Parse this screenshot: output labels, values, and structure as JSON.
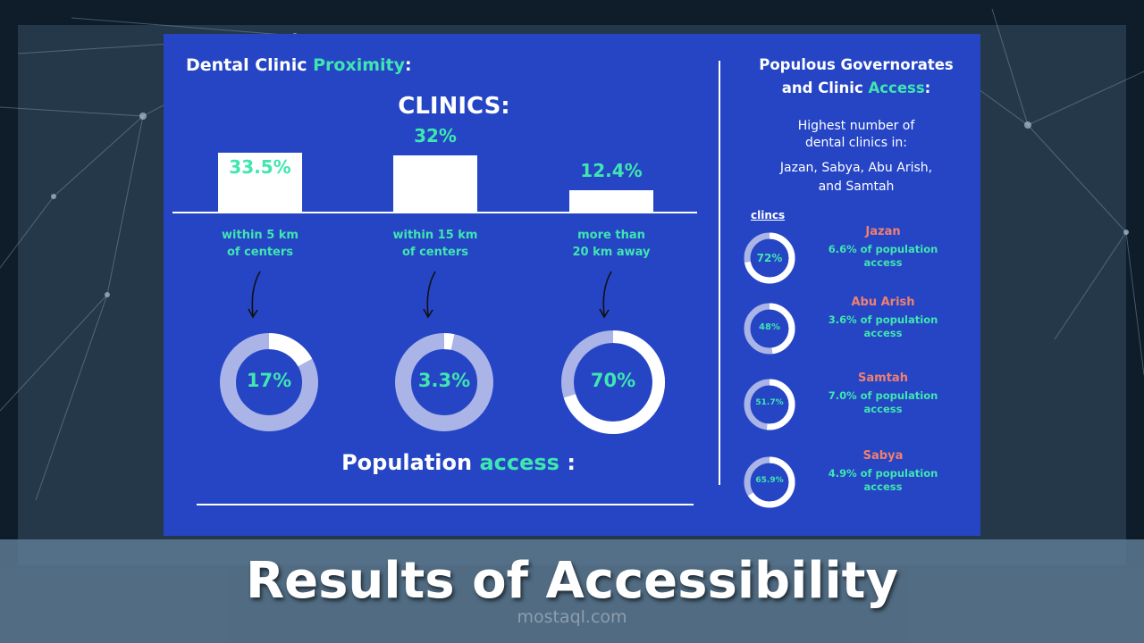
{
  "slide_title": "Results of Accessibility",
  "watermark": "mostaql.com",
  "left": {
    "title_part1": "Dental Clinic ",
    "title_part2": "Proximity",
    "title_part3": ":",
    "clinics_heading": "CLINICS:",
    "population_part1": "Population ",
    "population_part2": "access",
    "population_part3": " :"
  },
  "right": {
    "title_line1": "Populous Governorates",
    "title_line2_part1": "and Clinic ",
    "title_line2_part2": "Access",
    "title_line2_part3": ":",
    "subtitle_line1": "Highest number of",
    "subtitle_line2": "dental clinics in:",
    "list_line1": "Jazan, Sabya, Abu Arish,",
    "list_line2": "and Samtah",
    "clincs_label": "clincs"
  },
  "colors": {
    "panel": "#2545c5",
    "accent": "#3fe6b0",
    "gov_name": "#f08070",
    "donut_track": "#aab4e6",
    "donut_fill": "#ffffff"
  },
  "chart_data": [
    {
      "type": "bar",
      "title": "CLINICS:",
      "categories": [
        "within 5 km of centers",
        "within 15 km of centers",
        "more than 20 km away"
      ],
      "category_lines": [
        [
          "within 5 km",
          "of centers"
        ],
        [
          "within 15 km",
          "of centers"
        ],
        [
          "more than",
          "20 km away"
        ]
      ],
      "values": [
        33.5,
        32,
        12.4
      ],
      "labels": [
        "33.5%",
        "32%",
        "12.4%"
      ]
    },
    {
      "type": "pie",
      "title": "Population access :",
      "categories": [
        "within 5 km of centers",
        "within 15 km of centers",
        "more than 20 km away"
      ],
      "values": [
        17,
        3.3,
        70
      ],
      "labels": [
        "17%",
        "3.3%",
        "70%"
      ]
    },
    {
      "type": "pie",
      "title": "clincs",
      "categories": [
        "Jazan",
        "Abu Arish",
        "Samtah",
        "Sabya"
      ],
      "values": [
        72,
        48,
        51.7,
        65.9
      ],
      "labels": [
        "72%",
        "48%",
        "51.7%",
        "65.9%"
      ],
      "descriptions": [
        [
          "6.6% of population",
          "access"
        ],
        [
          "3.6% of population",
          "access"
        ],
        [
          "7.0% of population",
          "access"
        ],
        [
          "4.9% of population",
          "access"
        ]
      ]
    }
  ]
}
